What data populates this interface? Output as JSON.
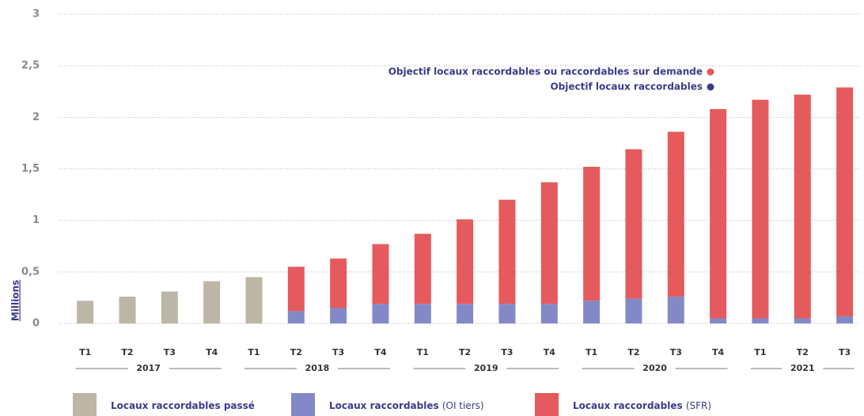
{
  "chart_data": {
    "type": "stacked_bar",
    "y_label": "Millions",
    "groups": [
      {
        "label": "2017",
        "categories": [
          "T1",
          "T2",
          "T3",
          "T4"
        ]
      },
      {
        "label": "2018",
        "categories": [
          "T1",
          "T2",
          "T3",
          "T4"
        ]
      },
      {
        "label": "2019",
        "categories": [
          "T1",
          "T2",
          "T3",
          "T4"
        ]
      },
      {
        "label": "2020",
        "categories": [
          "T1",
          "T2",
          "T3",
          "T4"
        ]
      },
      {
        "label": "2021",
        "categories": [
          "T1",
          "T2",
          "T3"
        ]
      }
    ],
    "series": [
      {
        "name": "Locaux raccordables passé",
        "color": "#bdb5a6",
        "values": [
          0.22,
          0.26,
          0.31,
          0.41,
          0.45,
          null,
          null,
          null,
          null,
          null,
          null,
          null,
          null,
          null,
          null,
          null,
          null,
          null,
          null
        ]
      },
      {
        "name": "Locaux raccordables",
        "qualifier": "(OI tiers)",
        "color": "#8389c7",
        "values": [
          null,
          null,
          null,
          null,
          null,
          0.12,
          0.15,
          0.19,
          0.19,
          0.19,
          0.19,
          0.19,
          0.22,
          0.24,
          0.26,
          0.05,
          0.05,
          0.05,
          0.07
        ]
      },
      {
        "name": "Locaux raccordables",
        "qualifier": "(SFR)",
        "color": "#e55a5c",
        "values": [
          null,
          null,
          null,
          null,
          null,
          0.43,
          0.48,
          0.58,
          0.68,
          0.82,
          1.01,
          1.18,
          1.3,
          1.45,
          1.6,
          2.03,
          2.12,
          2.17,
          2.22
        ]
      }
    ],
    "annotations": [
      {
        "text": "Objectif locaux raccordables ou raccordables sur demande",
        "color": "#e8585a"
      },
      {
        "text": "Objectif locaux raccordables",
        "color": "#3b3a8c"
      }
    ],
    "ylim": [
      0,
      3
    ],
    "yticks": [
      0,
      {
        "value": 0.5,
        "label": "0,5"
      },
      1,
      {
        "value": 1.5,
        "label": "1,5"
      },
      2,
      {
        "value": 2.5,
        "label": "2,5"
      },
      3
    ],
    "grid": true
  }
}
